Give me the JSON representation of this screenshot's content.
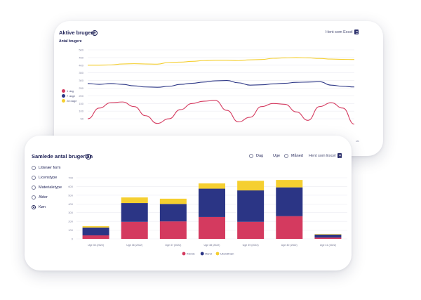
{
  "top_card": {
    "title": "Aktive brugere",
    "subtitle": "Antal brugere",
    "export_label": "Hent som Excel",
    "legend": [
      {
        "label": "1 dag",
        "color": "#d43a5f"
      },
      {
        "label": "7 dage",
        "color": "#2b3585"
      },
      {
        "label": "28 dage",
        "color": "#f5cf30"
      }
    ],
    "chart_data": {
      "type": "line",
      "title": "Aktive brugere",
      "ylabel": "Antal brugere",
      "ylim": [
        0,
        500
      ],
      "yticks": [
        50,
        100,
        150,
        200,
        250,
        300,
        350,
        400,
        450,
        500
      ],
      "x_last_label": "uts",
      "series": [
        {
          "name": "28 dage",
          "color": "#f5cf30",
          "values": [
            400,
            400,
            402,
            408,
            410,
            408,
            407,
            418,
            420,
            425,
            430,
            432,
            432,
            430,
            435,
            437,
            445,
            448,
            450,
            448,
            444,
            440,
            438,
            437
          ]
        },
        {
          "name": "7 dage",
          "color": "#2b3585",
          "values": [
            280,
            275,
            280,
            275,
            265,
            258,
            256,
            262,
            275,
            282,
            290,
            298,
            300,
            285,
            270,
            272,
            278,
            282,
            288,
            290,
            292,
            270,
            262,
            258
          ]
        },
        {
          "name": "1 dag",
          "color": "#d43a5f",
          "values": [
            50,
            120,
            155,
            160,
            130,
            70,
            20,
            50,
            110,
            150,
            165,
            170,
            105,
            30,
            60,
            130,
            150,
            145,
            95,
            40,
            130,
            155,
            120,
            15
          ]
        }
      ]
    }
  },
  "bottom_card": {
    "title": "Samlede antal brugerlån",
    "period_options": [
      {
        "label": "Dag",
        "selected": false
      },
      {
        "label": "Uge",
        "selected": true
      },
      {
        "label": "Måned",
        "selected": false
      }
    ],
    "export_label": "Hent som Excel",
    "filters": [
      {
        "label": "Litterær form",
        "selected": false
      },
      {
        "label": "Licenstype",
        "selected": false
      },
      {
        "label": "Materialetype",
        "selected": false
      },
      {
        "label": "Alder",
        "selected": false
      },
      {
        "label": "Køn",
        "selected": true
      }
    ],
    "chart_data": {
      "type": "bar",
      "stacked": true,
      "ylim": [
        0,
        700
      ],
      "yticks": [
        0,
        100,
        200,
        300,
        400,
        500,
        600,
        700
      ],
      "categories": [
        "Uge 35 (2022)",
        "Uge 36 (2022)",
        "Uge 37 (2022)",
        "Uge 38 (2022)",
        "Uge 39 (2022)",
        "Uge 40 (2022)",
        "Uge 41 (2022)"
      ],
      "series": [
        {
          "name": "Kvinde",
          "color": "#d43a5f",
          "values": [
            40,
            195,
            200,
            250,
            195,
            260,
            15
          ]
        },
        {
          "name": "Mand",
          "color": "#2b3585",
          "values": [
            90,
            215,
            200,
            325,
            360,
            330,
            35
          ]
        },
        {
          "name": "Ukendt køn",
          "color": "#f5cf30",
          "values": [
            15,
            65,
            60,
            60,
            110,
            85,
            5
          ]
        }
      ]
    }
  }
}
